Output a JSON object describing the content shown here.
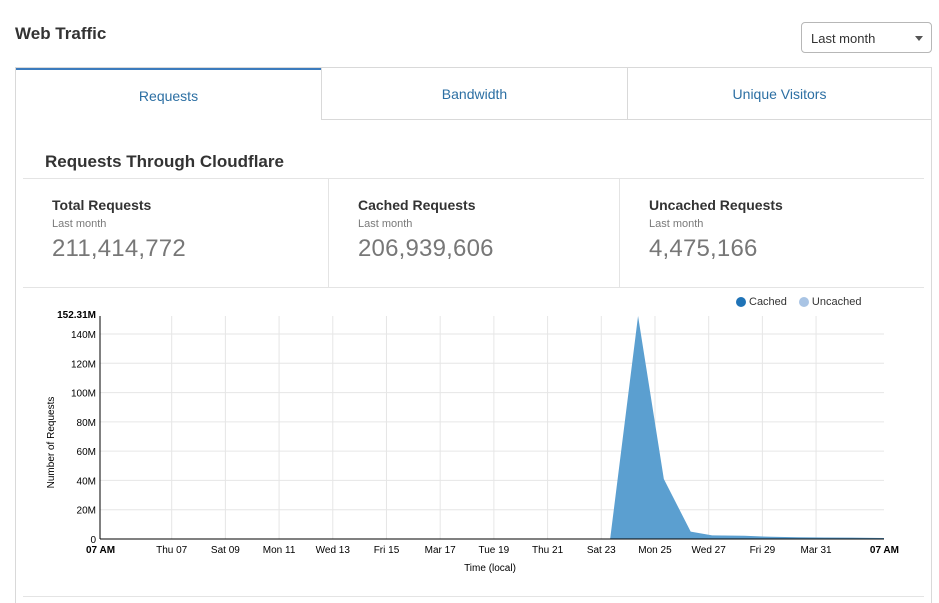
{
  "page": {
    "title": "Web Traffic"
  },
  "range_select": {
    "value": "Last month"
  },
  "tabs": [
    {
      "label": "Requests",
      "active": true
    },
    {
      "label": "Bandwidth",
      "active": false
    },
    {
      "label": "Unique Visitors",
      "active": false
    }
  ],
  "section": {
    "title": "Requests Through Cloudflare"
  },
  "stats": [
    {
      "label": "Total Requests",
      "sub": "Last month",
      "value": "211,414,772"
    },
    {
      "label": "Cached Requests",
      "sub": "Last month",
      "value": "206,939,606"
    },
    {
      "label": "Uncached Requests",
      "sub": "Last month",
      "value": "4,475,166"
    }
  ],
  "legend": [
    {
      "name": "Cached",
      "color": "#1f73b7"
    },
    {
      "name": "Uncached",
      "color": "#a9c4e4"
    }
  ],
  "chart_data": {
    "type": "area",
    "xlabel": "Time (local)",
    "ylabel": "Number of Requests",
    "y_max_label": "152.31M",
    "ylim": [
      0,
      152310000
    ],
    "y_ticks": [
      {
        "value": 0,
        "label": "0"
      },
      {
        "value": 20000000,
        "label": "20M"
      },
      {
        "value": 40000000,
        "label": "40M"
      },
      {
        "value": 60000000,
        "label": "60M"
      },
      {
        "value": 80000000,
        "label": "80M"
      },
      {
        "value": 100000000,
        "label": "100M"
      },
      {
        "value": 120000000,
        "label": "120M"
      },
      {
        "value": 140000000,
        "label": "140M"
      }
    ],
    "x_ticks": [
      {
        "day": 0,
        "label": "07 AM",
        "bold": true
      },
      {
        "day": 1.335,
        "label": "Thu 07",
        "bold": false
      },
      {
        "day": 2.335,
        "label": "Sat 09",
        "bold": false
      },
      {
        "day": 3.335,
        "label": "Mon 11",
        "bold": false
      },
      {
        "day": 4.335,
        "label": "Wed 13",
        "bold": false
      },
      {
        "day": 5.335,
        "label": "Fri 15",
        "bold": false
      },
      {
        "day": 6.335,
        "label": "Mar 17",
        "bold": false
      },
      {
        "day": 7.335,
        "label": "Tue 19",
        "bold": false
      },
      {
        "day": 8.335,
        "label": "Thu 21",
        "bold": false
      },
      {
        "day": 9.335,
        "label": "Sat 23",
        "bold": false
      },
      {
        "day": 10.335,
        "label": "Mon 25",
        "bold": false
      },
      {
        "day": 11.335,
        "label": "Wed 27",
        "bold": false
      },
      {
        "day": 12.335,
        "label": "Fri 29",
        "bold": false
      },
      {
        "day": 13.335,
        "label": "Mar 31",
        "bold": false
      },
      {
        "day": 14.6,
        "label": "07 AM",
        "bold": true
      }
    ],
    "x_range": [
      0,
      14.6
    ],
    "series": [
      {
        "name": "Cached",
        "color": "#5b9fd0",
        "points": [
          [
            0,
            0
          ],
          [
            9.5,
            0
          ],
          [
            10.02,
            152310000
          ],
          [
            10.5,
            41000000
          ],
          [
            11.0,
            5000000
          ],
          [
            11.4,
            2500000
          ],
          [
            12.0,
            2200000
          ],
          [
            12.5,
            1500000
          ],
          [
            13.0,
            1200000
          ],
          [
            13.5,
            1000000
          ],
          [
            14.0,
            900000
          ],
          [
            14.6,
            700000
          ]
        ]
      },
      {
        "name": "Uncached",
        "color": "#a9c4e4",
        "points": [
          [
            0,
            0
          ],
          [
            9.5,
            0
          ],
          [
            10.02,
            400000
          ],
          [
            10.5,
            300000
          ],
          [
            11.0,
            200000
          ],
          [
            14.6,
            100000
          ]
        ]
      }
    ]
  }
}
